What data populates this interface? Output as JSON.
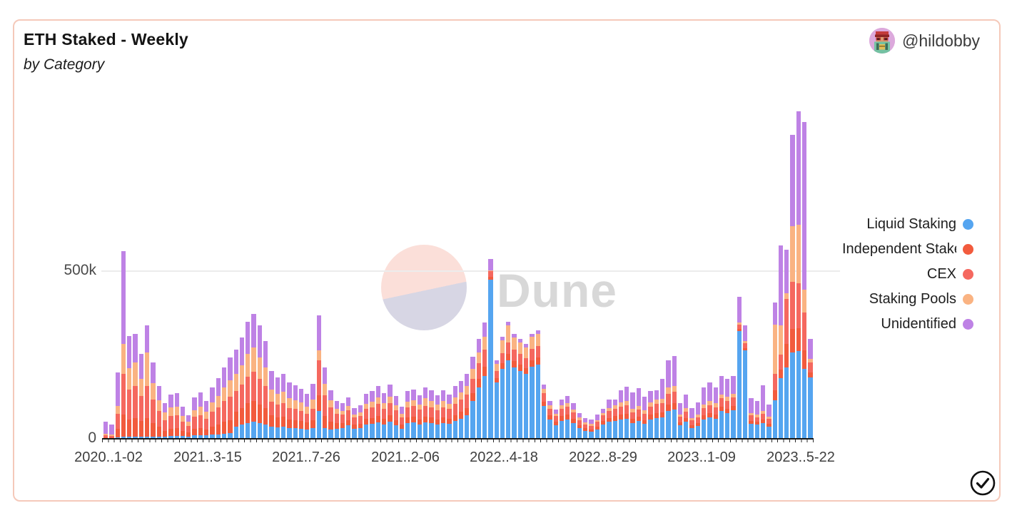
{
  "header": {
    "title": "ETH Staked - Weekly",
    "subtitle": "by Category",
    "author": "@hildobby"
  },
  "watermark": {
    "text": "Dune"
  },
  "colors": {
    "card_border": "#F5C9BA",
    "liquid_staking": "#55A5F0",
    "independent_stakers": "#F25B3D",
    "cex": "#F5685F",
    "staking_pools": "#FAB382",
    "unidentified": "#BE82E5",
    "gridline": "#ECECEC",
    "watermark_pink": "#FBDFD9",
    "watermark_lavender": "#D7D6E4"
  },
  "chart_data": {
    "type": "bar",
    "stacked": true,
    "title": "ETH Staked - Weekly",
    "subtitle": "by Category",
    "unit": "thousand ETH",
    "ylabel": "",
    "xlabel": "",
    "ylim": [
      0,
      1000
    ],
    "y_tick_labels": [
      "0",
      "500k"
    ],
    "y_tick_values": [
      0,
      500
    ],
    "x_tick_labels": [
      "2020..1-02",
      "2021..3-15",
      "2021..7-26",
      "2021..2-06",
      "2022..4-18",
      "2022..8-29",
      "2023..1-09",
      "2023..5-22"
    ],
    "x_range_note": "weekly bars from 2020-11-02 to 2023-05-22",
    "grid": "horizontal-500k-only",
    "legend_position": "right",
    "series": [
      {
        "name": "Liquid Staking",
        "color": "#55A5F0",
        "values": [
          0,
          0,
          3,
          5,
          5,
          5,
          5,
          5,
          5,
          5,
          4,
          6,
          6,
          6,
          5,
          8,
          8,
          8,
          10,
          10,
          12,
          14,
          35,
          40,
          45,
          48,
          44,
          40,
          35,
          32,
          34,
          30,
          30,
          28,
          26,
          30,
          80,
          30,
          25,
          28,
          30,
          38,
          28,
          30,
          40,
          42,
          46,
          40,
          48,
          38,
          28,
          44,
          46,
          40,
          46,
          44,
          40,
          45,
          42,
          50,
          58,
          68,
          110,
          150,
          185,
          470,
          165,
          205,
          230,
          210,
          200,
          190,
          212,
          218,
          95,
          55,
          38,
          52,
          56,
          45,
          30,
          22,
          20,
          26,
          40,
          48,
          52,
          55,
          58,
          45,
          50,
          42,
          55,
          60,
          62,
          80,
          85,
          38,
          48,
          30,
          36,
          55,
          62,
          58,
          80,
          75,
          82,
          318,
          260,
          42,
          40,
          45,
          35,
          112,
          178,
          210,
          254,
          259,
          205,
          180
        ]
      },
      {
        "name": "Independent Stakers",
        "color": "#F25B3D",
        "values": [
          3,
          3,
          25,
          65,
          50,
          55,
          45,
          55,
          40,
          28,
          18,
          22,
          23,
          16,
          12,
          20,
          22,
          18,
          25,
          30,
          36,
          40,
          44,
          50,
          58,
          62,
          56,
          48,
          32,
          29,
          30,
          26,
          24,
          22,
          20,
          24,
          48,
          36,
          24,
          16,
          14,
          16,
          12,
          13,
          17,
          18,
          20,
          17,
          20,
          16,
          12,
          17,
          18,
          16,
          18,
          17,
          15,
          17,
          16,
          18,
          20,
          22,
          24,
          26,
          28,
          8,
          12,
          18,
          20,
          20,
          18,
          18,
          20,
          21,
          14,
          12,
          10,
          13,
          14,
          12,
          9,
          7,
          6,
          8,
          10,
          12,
          13,
          14,
          15,
          12,
          13,
          11,
          14,
          15,
          15,
          19,
          20,
          9,
          11,
          8,
          9,
          12,
          13,
          12,
          14,
          13,
          14,
          6,
          8,
          9,
          8,
          10,
          8,
          30,
          25,
          70,
          70,
          67,
          56,
          15
        ]
      },
      {
        "name": "CEX",
        "color": "#F5685F",
        "values": [
          5,
          4,
          45,
          120,
          90,
          95,
          75,
          95,
          70,
          48,
          32,
          38,
          39,
          27,
          20,
          35,
          38,
          32,
          44,
          52,
          62,
          70,
          60,
          68,
          80,
          86,
          76,
          66,
          42,
          38,
          40,
          34,
          32,
          30,
          26,
          32,
          102,
          62,
          42,
          28,
          25,
          28,
          21,
          23,
          30,
          32,
          35,
          30,
          36,
          28,
          21,
          31,
          32,
          28,
          32,
          30,
          27,
          30,
          28,
          33,
          36,
          40,
          43,
          46,
          50,
          18,
          22,
          30,
          34,
          34,
          32,
          30,
          33,
          35,
          24,
          20,
          17,
          22,
          24,
          20,
          15,
          12,
          11,
          14,
          17,
          20,
          22,
          24,
          25,
          20,
          22,
          19,
          24,
          26,
          26,
          33,
          34,
          16,
          19,
          14,
          16,
          21,
          23,
          22,
          24,
          23,
          24,
          12,
          14,
          16,
          14,
          17,
          14,
          48,
          46,
          134,
          140,
          134,
          111,
          30
        ]
      },
      {
        "name": "Staking Pools",
        "color": "#FAB382",
        "values": [
          5,
          4,
          22,
          90,
          62,
          70,
          50,
          100,
          48,
          32,
          22,
          26,
          26,
          17,
          12,
          20,
          25,
          20,
          28,
          34,
          40,
          48,
          52,
          58,
          68,
          72,
          64,
          56,
          36,
          32,
          34,
          29,
          27,
          25,
          22,
          28,
          30,
          32,
          22,
          14,
          12,
          14,
          10,
          11,
          15,
          17,
          19,
          16,
          19,
          15,
          11,
          16,
          17,
          15,
          22,
          20,
          17,
          19,
          16,
          20,
          22,
          25,
          28,
          32,
          38,
          2,
          22,
          38,
          50,
          36,
          35,
          32,
          35,
          36,
          14,
          10,
          8,
          10,
          11,
          9,
          7,
          5,
          5,
          6,
          8,
          10,
          11,
          12,
          13,
          10,
          11,
          10,
          12,
          13,
          14,
          18,
          17,
          8,
          10,
          7,
          8,
          11,
          12,
          11,
          12,
          12,
          12,
          8,
          6,
          8,
          7,
          9,
          7,
          146,
          85,
          17,
          165,
          174,
          68,
          10
        ]
      },
      {
        "name": "Unidentified",
        "color": "#BE82E5",
        "values": [
          36,
          30,
          100,
          275,
          95,
          85,
          75,
          80,
          62,
          42,
          28,
          38,
          40,
          28,
          19,
          37,
          42,
          32,
          43,
          52,
          60,
          68,
          72,
          83,
          94,
          101,
          94,
          79,
          55,
          49,
          52,
          46,
          43,
          41,
          37,
          47,
          105,
          50,
          30,
          24,
          23,
          24,
          19,
          21,
          29,
          31,
          34,
          30,
          36,
          29,
          21,
          32,
          32,
          29,
          32,
          30,
          28,
          31,
          28,
          34,
          34,
          35,
          37,
          40,
          42,
          34,
          9,
          9,
          11,
          10,
          10,
          10,
          10,
          10,
          13,
          13,
          12,
          18,
          20,
          19,
          14,
          14,
          13,
          16,
          13,
          25,
          16,
          36,
          42,
          49,
          52,
          41,
          35,
          28,
          58,
          80,
          89,
          34,
          42,
          31,
          38,
          51,
          55,
          47,
          55,
          52,
          53,
          76,
          47,
          43,
          41,
          77,
          36,
          67,
          238,
          129,
          271,
          336,
          498,
          60
        ]
      }
    ]
  },
  "footer": {
    "verified_badge": "check"
  }
}
